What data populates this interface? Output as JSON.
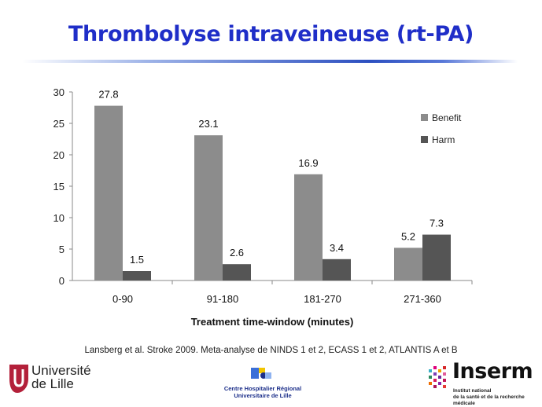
{
  "slide": {
    "title": "Thrombolyse intraveineuse (rt-PA)",
    "citation": "Lansberg et al.  Stroke 2009. Meta-analyse de NINDS 1 et 2, ECASS 1 et 2, ATLANTIS A et B"
  },
  "logos": {
    "universite": [
      "Université",
      "de Lille"
    ],
    "chr": [
      "Centre Hospitalier Régional",
      "Universitaire de Lille"
    ],
    "inserm": "Inserm",
    "inserm_sub": [
      "Institut national",
      "de la santé et de la recherche médicale"
    ]
  },
  "chart_data": {
    "type": "bar",
    "categories": [
      "0-90",
      "91-180",
      "181-270",
      "271-360"
    ],
    "series": [
      {
        "name": "Benefit",
        "values": [
          27.8,
          23.1,
          16.9,
          5.2
        ],
        "color": "#8c8c8c"
      },
      {
        "name": "Harm",
        "values": [
          1.5,
          2.6,
          3.4,
          7.3
        ],
        "color": "#555555"
      }
    ],
    "data_labels": [
      "27.8",
      "23.1",
      "16.9",
      "5.2",
      "1.5",
      "2.6",
      "3.4",
      "7.3"
    ],
    "xlabel": "Treatment time-window (minutes)",
    "ylabel": "",
    "ylim": [
      0,
      30
    ],
    "yticks": [
      0,
      5,
      10,
      15,
      20,
      25,
      30
    ],
    "grid": false,
    "legend": "top-right"
  }
}
